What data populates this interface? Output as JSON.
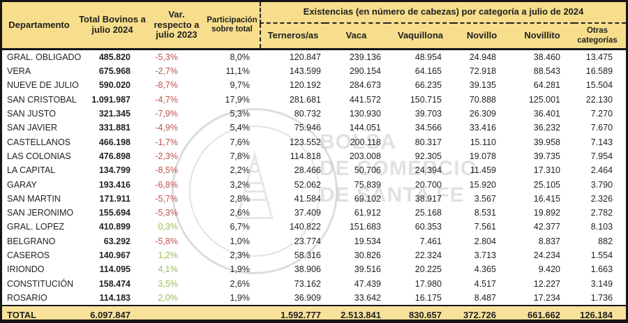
{
  "colors": {
    "header_bg": "#F7DE8C",
    "total_row_bg": "#F8E29A",
    "negative": "#C0504D",
    "positive": "#9BBB59",
    "border": "#151515",
    "text": "#1F1F1F",
    "watermark": "#C9C9C9"
  },
  "header": {
    "departamento": "Departamento",
    "total_bovinos": "Total Bovinos a julio 2024",
    "variacion": "Var. respecto a julio 2023",
    "participacion": "Participación sobre total",
    "existencias": "Existencias (en número de cabezas) por categoría a julio de 2024",
    "categories": [
      "Terneros/as",
      "Vaca",
      "Vaquillona",
      "Novillo",
      "Novillito",
      "Otras categorías"
    ]
  },
  "rows": [
    {
      "dept": "GRAL. OBLIGADO",
      "total": "485.820",
      "var": "-5,3%",
      "trend": "neg",
      "part": "8,0%",
      "values": [
        "120.847",
        "239.136",
        "48.954",
        "24.948",
        "38.460",
        "13.475"
      ]
    },
    {
      "dept": "VERA",
      "total": "675.968",
      "var": "-2,7%",
      "trend": "neg",
      "part": "11,1%",
      "values": [
        "143.599",
        "290.154",
        "64.165",
        "72.918",
        "88.543",
        "16.589"
      ]
    },
    {
      "dept": "NUEVE DE JULIO",
      "total": "590.020",
      "var": "-8,7%",
      "trend": "neg",
      "part": "9,7%",
      "values": [
        "120.192",
        "284.673",
        "66.235",
        "39.135",
        "64.281",
        "15.504"
      ]
    },
    {
      "dept": "SAN CRISTOBAL",
      "total": "1.091.987",
      "var": "-4,7%",
      "trend": "neg",
      "part": "17,9%",
      "values": [
        "281.681",
        "441.572",
        "150.715",
        "70.888",
        "125.001",
        "22.130"
      ]
    },
    {
      "dept": "SAN JUSTO",
      "total": "321.345",
      "var": "-7,9%",
      "trend": "neg",
      "part": "5,3%",
      "values": [
        "80.732",
        "130.930",
        "39.703",
        "26.309",
        "36.401",
        "7.270"
      ]
    },
    {
      "dept": "SAN JAVIER",
      "total": "331.881",
      "var": "-4,9%",
      "trend": "neg",
      "part": "5,4%",
      "values": [
        "75.946",
        "144.051",
        "34.566",
        "33.416",
        "36.232",
        "7.670"
      ]
    },
    {
      "dept": "CASTELLANOS",
      "total": "466.198",
      "var": "-1,7%",
      "trend": "neg",
      "part": "7,6%",
      "values": [
        "123.552",
        "200.118",
        "80.317",
        "15.110",
        "39.958",
        "7.143"
      ]
    },
    {
      "dept": "LAS COLONIAS",
      "total": "476.898",
      "var": "-2,3%",
      "trend": "neg",
      "part": "7,8%",
      "values": [
        "114.818",
        "203.008",
        "92.305",
        "19.078",
        "39.735",
        "7.954"
      ]
    },
    {
      "dept": "LA CAPITAL",
      "total": "134.799",
      "var": "-8,5%",
      "trend": "neg",
      "part": "2,2%",
      "values": [
        "28.466",
        "50.706",
        "24.394",
        "11.459",
        "17.310",
        "2.464"
      ]
    },
    {
      "dept": "GARAY",
      "total": "193.416",
      "var": "-6,8%",
      "trend": "neg",
      "part": "3,2%",
      "values": [
        "52.062",
        "75.839",
        "20.700",
        "15.920",
        "25.105",
        "3.790"
      ]
    },
    {
      "dept": "SAN MARTIN",
      "total": "171.911",
      "var": "-5,7%",
      "trend": "neg",
      "part": "2,8%",
      "values": [
        "41.584",
        "69.102",
        "38.917",
        "3.567",
        "16.415",
        "2.326"
      ]
    },
    {
      "dept": "SAN JERONIMO",
      "total": "155.694",
      "var": "-5,3%",
      "trend": "neg",
      "part": "2,6%",
      "values": [
        "37.409",
        "61.912",
        "25.168",
        "8.531",
        "19.892",
        "2.782"
      ]
    },
    {
      "dept": "GRAL. LOPEZ",
      "total": "410.899",
      "var": "0,3%",
      "trend": "pos",
      "part": "6,7%",
      "values": [
        "140.822",
        "151.683",
        "60.353",
        "7.561",
        "42.377",
        "8.103"
      ]
    },
    {
      "dept": "BELGRANO",
      "total": "63.292",
      "var": "-5,8%",
      "trend": "neg",
      "part": "1,0%",
      "values": [
        "23.774",
        "19.534",
        "7.461",
        "2.804",
        "8.837",
        "882"
      ]
    },
    {
      "dept": "CASEROS",
      "total": "140.967",
      "var": "1,2%",
      "trend": "pos",
      "part": "2,3%",
      "values": [
        "58.316",
        "30.826",
        "22.324",
        "3.713",
        "24.234",
        "1.554"
      ]
    },
    {
      "dept": "IRIONDO",
      "total": "114.095",
      "var": "4,1%",
      "trend": "pos",
      "part": "1,9%",
      "values": [
        "38.906",
        "39.516",
        "20.225",
        "4.365",
        "9.420",
        "1.663"
      ]
    },
    {
      "dept": "CONSTITUCIÓN",
      "total": "158.474",
      "var": "3,5%",
      "trend": "pos",
      "part": "2,6%",
      "values": [
        "73.162",
        "47.439",
        "17.980",
        "4.517",
        "12.227",
        "3.149"
      ]
    },
    {
      "dept": "ROSARIO",
      "total": "114.183",
      "var": "2,0%",
      "trend": "pos",
      "part": "1,9%",
      "values": [
        "36.909",
        "33.642",
        "16.175",
        "8.487",
        "17.234",
        "1.736"
      ]
    }
  ],
  "total_row": {
    "label": "TOTAL",
    "total": "6.097.847",
    "variation": "",
    "participation": "",
    "values": [
      "1.592.777",
      "2.513.841",
      "830.657",
      "372.726",
      "661.662",
      "126.184"
    ]
  },
  "watermark": {
    "seal_name": "Bolsa de Comercio de Santa Fe seal",
    "lines": [
      "BOLSA",
      "DE COMERCIO",
      "DE SANTA FE"
    ]
  }
}
